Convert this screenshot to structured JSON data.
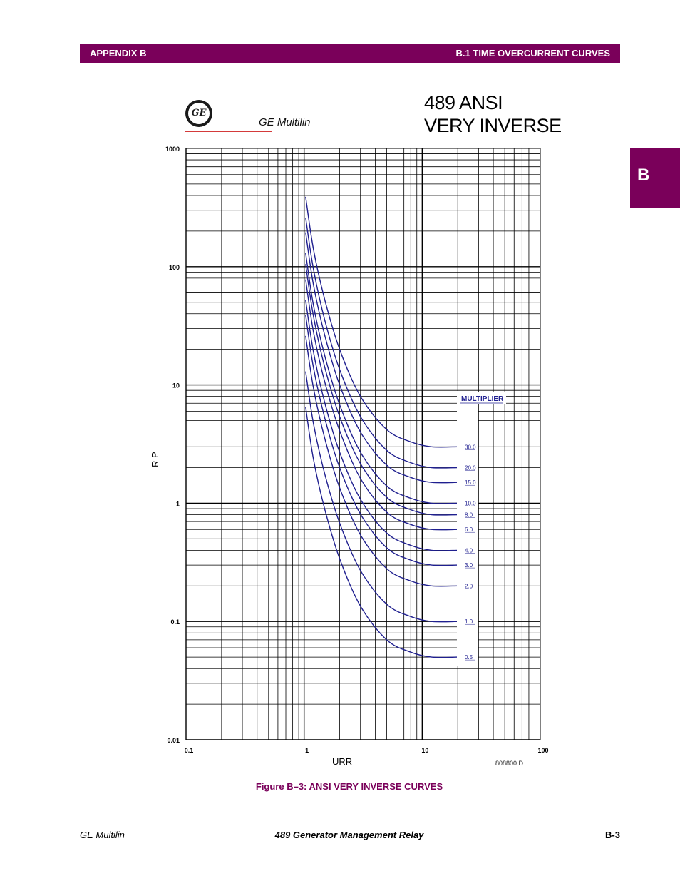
{
  "header": {
    "left": "APPENDIX B",
    "right": "B.1 TIME OVERCURRENT CURVES"
  },
  "side_tab": "B",
  "logo": {
    "icon": "ge-logo-icon",
    "text": "GE",
    "brand": "GE Multilin"
  },
  "title_lines": [
    "489 ANSI",
    "VERY INVERSE"
  ],
  "drawing_code": "808800     D",
  "caption": "Figure B–3: ANSI VERY INVERSE CURVES",
  "footer": {
    "left": "GE Multilin",
    "center": "489 Generator Management Relay",
    "right": "B-3"
  },
  "colors": {
    "accent": "#7a005a",
    "curve": "#1f1f8f",
    "grid": "#000000"
  },
  "chart_data": {
    "type": "line",
    "xlabel": "URR",
    "ylabel": "R P",
    "x_scale": "log",
    "y_scale": "log",
    "xlim": [
      0.1,
      100
    ],
    "ylim": [
      0.01,
      1000
    ],
    "x_ticks": [
      "0.1",
      "1",
      "10",
      "100"
    ],
    "y_ticks": [
      "1000",
      "100",
      "10",
      "1",
      "0.1",
      "0.01"
    ],
    "grid": true,
    "legend_title": "MULTIPLIER",
    "legend_placement": "right",
    "x": [
      1.03,
      1.2,
      1.5,
      2,
      3,
      5,
      8,
      12,
      20
    ],
    "series": [
      {
        "name": "30.0",
        "values": [
          390,
          140,
          52,
          20,
          8.0,
          4.2,
          3.3,
          3.0,
          3.0
        ]
      },
      {
        "name": "20.0",
        "values": [
          260,
          95,
          35,
          13.5,
          5.4,
          2.8,
          2.2,
          2.0,
          2.0
        ]
      },
      {
        "name": "15.0",
        "values": [
          195,
          70,
          26,
          10,
          4.0,
          2.1,
          1.65,
          1.5,
          1.5
        ]
      },
      {
        "name": "10.0",
        "values": [
          130,
          47,
          17.5,
          6.8,
          2.7,
          1.4,
          1.1,
          1.0,
          1.0
        ]
      },
      {
        "name": "8.0",
        "values": [
          105,
          38,
          14,
          5.4,
          2.16,
          1.12,
          0.88,
          0.8,
          0.8
        ]
      },
      {
        "name": "6.0",
        "values": [
          78,
          28,
          10.5,
          4.1,
          1.62,
          0.84,
          0.66,
          0.6,
          0.6
        ]
      },
      {
        "name": "4.0",
        "values": [
          52,
          19,
          7.0,
          2.7,
          1.08,
          0.56,
          0.44,
          0.4,
          0.4
        ]
      },
      {
        "name": "3.0",
        "values": [
          39,
          14,
          5.2,
          2.0,
          0.81,
          0.42,
          0.33,
          0.3,
          0.3
        ]
      },
      {
        "name": "2.0",
        "values": [
          26,
          9.4,
          3.5,
          1.35,
          0.54,
          0.28,
          0.22,
          0.2,
          0.2
        ]
      },
      {
        "name": "1.0",
        "values": [
          13,
          4.7,
          1.75,
          0.68,
          0.27,
          0.14,
          0.11,
          0.1,
          0.1
        ]
      },
      {
        "name": "0.5",
        "values": [
          6.5,
          2.35,
          0.88,
          0.34,
          0.135,
          0.07,
          0.055,
          0.05,
          0.05
        ]
      }
    ]
  }
}
